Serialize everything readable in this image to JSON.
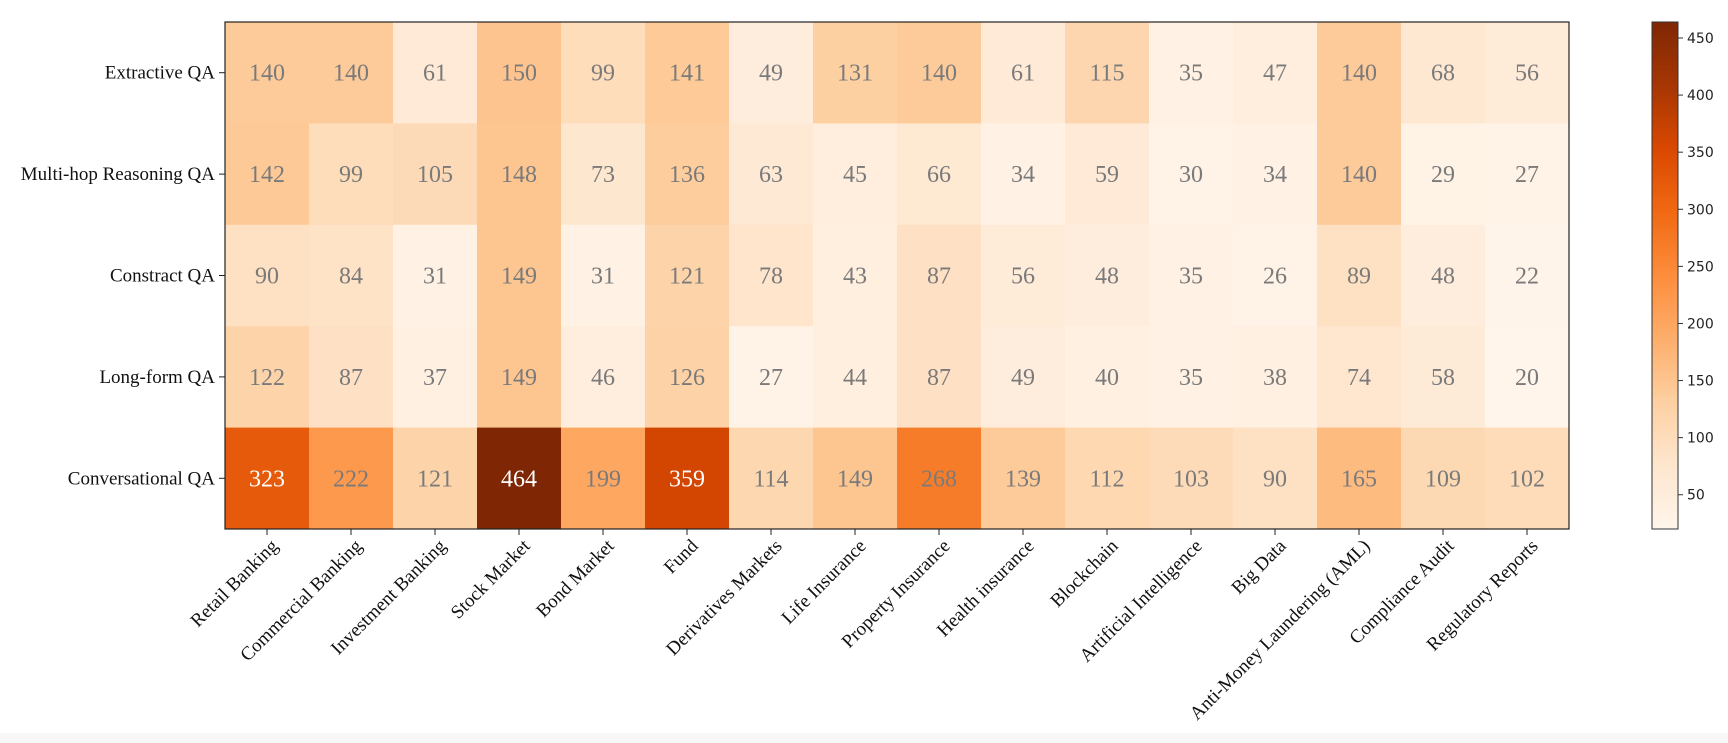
{
  "chart_data": {
    "type": "heatmap",
    "title": "",
    "xlabel": "",
    "ylabel": "",
    "rows": [
      "Extractive QA",
      "Multi-hop Reasoning QA",
      "Constract QA",
      "Long-form QA",
      "Conversational QA"
    ],
    "columns": [
      "Retail Banking",
      "Commercial Banking",
      "Investment Banking",
      "Stock Market",
      "Bond Market",
      "Fund",
      "Derivatives Markets",
      "Life Insurance",
      "Property Insurance",
      "Health insurance",
      "Blockchain",
      "Artificial Intelligence",
      "Big Data",
      "Anti-Money Laundering (AML)",
      "Compliance Audit",
      "Regulatory Reports"
    ],
    "values": [
      [
        140,
        140,
        61,
        150,
        99,
        141,
        49,
        131,
        140,
        61,
        115,
        35,
        47,
        140,
        68,
        56
      ],
      [
        142,
        99,
        105,
        148,
        73,
        136,
        63,
        45,
        66,
        34,
        59,
        30,
        34,
        140,
        29,
        27
      ],
      [
        90,
        84,
        31,
        149,
        31,
        121,
        78,
        43,
        87,
        56,
        48,
        35,
        26,
        89,
        48,
        22
      ],
      [
        122,
        87,
        37,
        149,
        46,
        126,
        27,
        44,
        87,
        49,
        40,
        35,
        38,
        74,
        58,
        20
      ],
      [
        323,
        222,
        121,
        464,
        199,
        359,
        114,
        149,
        268,
        139,
        112,
        103,
        90,
        165,
        109,
        102
      ]
    ],
    "colorbar": {
      "range": [
        20,
        464
      ],
      "ticks": [
        50,
        100,
        150,
        200,
        250,
        300,
        350,
        400,
        450
      ],
      "colormap": "Oranges"
    },
    "annotation_color_light": "#ffffff",
    "annotation_color_dark": "#7a7a7a"
  }
}
